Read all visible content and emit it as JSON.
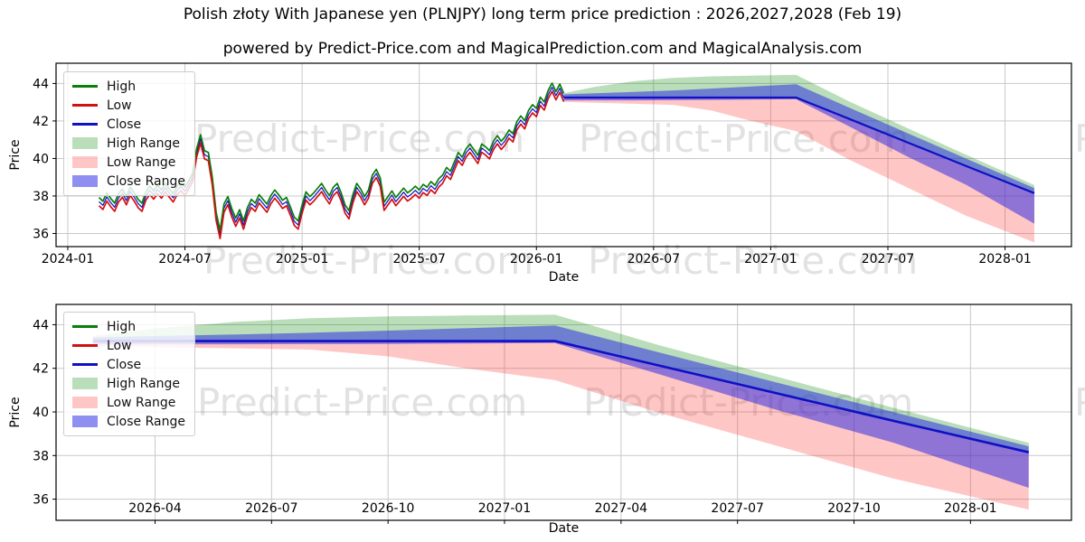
{
  "page": {
    "title": "Polish złoty With Japanese yen (PLNJPY) long term price prediction : 2026,2027,2028 (Feb 19)",
    "subtitle": "powered by Predict-Price.com and MagicalPrediction.com and MagicalAnalysis.com",
    "watermark_text": "Predict-Price.com"
  },
  "colors": {
    "high": "#0a7d0a",
    "low": "#d40f0f",
    "close": "#0f0fc4",
    "high_range": "rgba(0,128,0,0.27)",
    "low_range": "rgba(255,45,45,0.27)",
    "close_range": "rgba(40,40,228,0.52)",
    "grid": "#c9c9c9",
    "spine": "#000000",
    "watermark": "rgba(150,150,150,0.28)"
  },
  "legend": [
    {
      "label": "High",
      "type": "line",
      "color": "high"
    },
    {
      "label": "Low",
      "type": "line",
      "color": "low"
    },
    {
      "label": "Close",
      "type": "line",
      "color": "close"
    },
    {
      "label": "High Range",
      "type": "patch",
      "color": "high_range"
    },
    {
      "label": "Low Range",
      "type": "patch",
      "color": "low_range"
    },
    {
      "label": "Close Range",
      "type": "patch",
      "color": "close_range"
    }
  ],
  "chart_data": [
    {
      "type": "line",
      "title": "",
      "xlabel": "Date",
      "ylabel": "Price",
      "x_unit": "months since 2024-01",
      "x_range": [
        -0.6,
        51.4
      ],
      "y_range": [
        35.3,
        45.08
      ],
      "grid": true,
      "legend_position": "upper-left",
      "x_ticks": [
        {
          "v": 0,
          "label": "2024-01"
        },
        {
          "v": 6,
          "label": "2024-07"
        },
        {
          "v": 12,
          "label": "2025-01"
        },
        {
          "v": 18,
          "label": "2025-07"
        },
        {
          "v": 24,
          "label": "2026-01"
        },
        {
          "v": 30,
          "label": "2026-07"
        },
        {
          "v": 36,
          "label": "2027-01"
        },
        {
          "v": 42,
          "label": "2027-07"
        },
        {
          "v": 48,
          "label": "2028-01"
        }
      ],
      "y_ticks": [
        36,
        38,
        40,
        42,
        44
      ],
      "hist": {
        "start_month": 1.6,
        "step": 0.2,
        "hl_offset": 0.22,
        "close": [
          37.7,
          37.5,
          37.95,
          37.65,
          37.4,
          37.9,
          38.15,
          37.75,
          38.25,
          37.95,
          37.6,
          37.4,
          38.0,
          38.3,
          38.05,
          38.35,
          38.1,
          38.45,
          38.15,
          37.9,
          38.3,
          38.5,
          38.25,
          38.6,
          39.0,
          40.3,
          41.05,
          40.2,
          40.1,
          38.8,
          36.9,
          35.95,
          37.35,
          37.75,
          37.1,
          36.6,
          37.05,
          36.45,
          37.15,
          37.6,
          37.4,
          37.85,
          37.6,
          37.35,
          37.8,
          38.1,
          37.85,
          37.55,
          37.7,
          37.2,
          36.65,
          36.45,
          37.3,
          38.0,
          37.75,
          37.95,
          38.2,
          38.45,
          38.1,
          37.8,
          38.25,
          38.45,
          37.95,
          37.3,
          37.0,
          37.85,
          38.45,
          38.15,
          37.75,
          38.1,
          38.9,
          39.2,
          38.75,
          37.45,
          37.75,
          38.05,
          37.7,
          37.95,
          38.2,
          37.95,
          38.1,
          38.3,
          38.1,
          38.4,
          38.25,
          38.55,
          38.35,
          38.7,
          38.9,
          39.3,
          39.1,
          39.6,
          40.1,
          39.85,
          40.3,
          40.55,
          40.25,
          39.95,
          40.55,
          40.4,
          40.2,
          40.7,
          41.0,
          40.7,
          40.95,
          41.3,
          41.1,
          41.75,
          42.05,
          41.8,
          42.35,
          42.65,
          42.45,
          43.05,
          42.8,
          43.4,
          43.8,
          43.35,
          43.75,
          43.25
        ]
      },
      "pred": {
        "months": [
          25.4,
          27,
          29,
          31,
          33,
          35,
          37.3,
          40,
          43,
          46,
          49.5
        ],
        "close": [
          43.25,
          43.25,
          43.25,
          43.25,
          43.25,
          43.25,
          43.25,
          42.12,
          40.86,
          39.6,
          38.15
        ],
        "close_hi": [
          43.42,
          43.48,
          43.55,
          43.63,
          43.73,
          43.84,
          43.96,
          42.72,
          41.35,
          40.0,
          38.42
        ],
        "close_lo": [
          43.1,
          43.1,
          43.1,
          43.11,
          43.12,
          43.14,
          43.16,
          41.72,
          40.1,
          38.6,
          36.52
        ],
        "high_hi": [
          43.48,
          43.82,
          44.12,
          44.3,
          44.38,
          44.42,
          44.46,
          43.05,
          41.62,
          40.2,
          38.58
        ],
        "low_lo": [
          43.02,
          42.97,
          42.92,
          42.86,
          42.55,
          42.0,
          41.46,
          39.95,
          38.45,
          36.95,
          35.52
        ]
      }
    },
    {
      "type": "line",
      "title": "",
      "xlabel": "Date",
      "ylabel": "Price",
      "x_unit": "months since 2024-01",
      "x_range": [
        24.45,
        50.6
      ],
      "y_range": [
        35.03,
        44.93
      ],
      "grid": true,
      "legend_position": "upper-left",
      "x_ticks": [
        {
          "v": 27,
          "label": "2026-04"
        },
        {
          "v": 30,
          "label": "2026-07"
        },
        {
          "v": 33,
          "label": "2026-10"
        },
        {
          "v": 36,
          "label": "2027-01"
        },
        {
          "v": 39,
          "label": "2027-04"
        },
        {
          "v": 42,
          "label": "2027-07"
        },
        {
          "v": 45,
          "label": "2027-10"
        },
        {
          "v": 48,
          "label": "2028-01"
        }
      ],
      "y_ticks": [
        36,
        38,
        40,
        42,
        44
      ],
      "pred": {
        "months": [
          25.4,
          27,
          29,
          31,
          33,
          35,
          37.3,
          40,
          43,
          46,
          49.5
        ],
        "close": [
          43.25,
          43.25,
          43.25,
          43.25,
          43.25,
          43.25,
          43.25,
          42.12,
          40.86,
          39.6,
          38.15
        ],
        "close_hi": [
          43.42,
          43.48,
          43.55,
          43.63,
          43.73,
          43.84,
          43.96,
          42.72,
          41.35,
          40.0,
          38.42
        ],
        "close_lo": [
          43.1,
          43.1,
          43.1,
          43.11,
          43.12,
          43.14,
          43.16,
          41.72,
          40.1,
          38.6,
          36.52
        ],
        "high_hi": [
          43.48,
          43.82,
          44.12,
          44.3,
          44.38,
          44.42,
          44.46,
          43.05,
          41.62,
          40.2,
          38.58
        ],
        "low_lo": [
          43.02,
          42.97,
          42.92,
          42.86,
          42.55,
          42.0,
          41.46,
          39.95,
          38.45,
          36.95,
          35.52
        ]
      }
    }
  ]
}
